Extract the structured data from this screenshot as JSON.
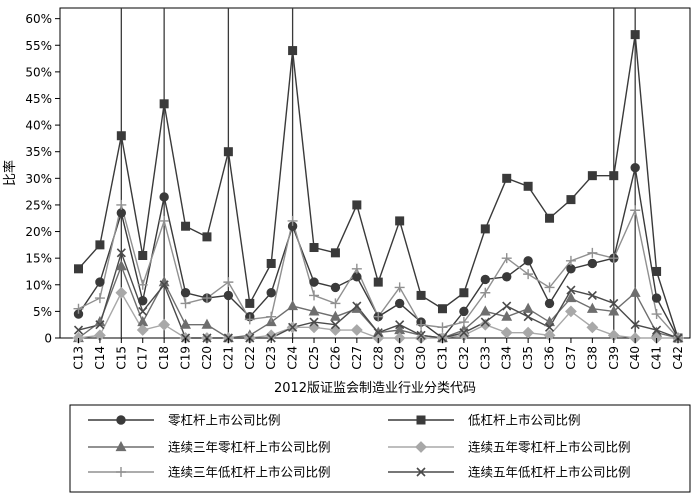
{
  "chart_data": {
    "type": "line",
    "xlabel": "2012版证监会制造业行业分类代码",
    "ylabel": "比率",
    "ylim": [
      0,
      62
    ],
    "yticks": [
      0,
      5,
      10,
      15,
      20,
      25,
      30,
      35,
      40,
      45,
      50,
      55,
      60
    ],
    "ytick_labels": [
      "0",
      "5%",
      "10%",
      "15%",
      "20%",
      "25%",
      "30%",
      "35%",
      "40%",
      "45%",
      "50%",
      "55%",
      "60%"
    ],
    "categories": [
      "C13",
      "C14",
      "C15",
      "C17",
      "C18",
      "C19",
      "C20",
      "C21",
      "C22",
      "C23",
      "C24",
      "C25",
      "C26",
      "C27",
      "C28",
      "C29",
      "C30",
      "C31",
      "C32",
      "C33",
      "C34",
      "C35",
      "C36",
      "C37",
      "C38",
      "C39",
      "C40",
      "C41",
      "C42"
    ],
    "vertical_reference_categories": [
      "C15",
      "C18",
      "C21",
      "C24",
      "C39",
      "C40"
    ],
    "legend_position": "bottom",
    "series": [
      {
        "name": "零杠杆上市公司比例",
        "marker": "circle",
        "color": "#3a3a3a",
        "values": [
          4.5,
          10.5,
          23.5,
          7,
          26.5,
          8.5,
          7.5,
          8,
          4,
          8.5,
          21,
          10.5,
          9.5,
          11.5,
          4,
          6.5,
          3,
          0,
          5,
          11,
          11.5,
          14.5,
          6.5,
          13,
          14,
          15,
          32,
          7.5,
          0
        ]
      },
      {
        "name": "低杠杆上市公司比例",
        "marker": "square",
        "color": "#3a3a3a",
        "values": [
          13,
          17.5,
          38,
          15.5,
          44,
          21,
          19,
          35,
          6.5,
          14,
          54,
          17,
          16,
          25,
          10.5,
          22,
          8,
          5.5,
          8.5,
          20.5,
          30,
          28.5,
          22.5,
          26,
          30.5,
          30.5,
          57,
          12.5,
          0
        ]
      },
      {
        "name": "连续三年零杠杆上市公司比例",
        "marker": "triangle",
        "color": "#6e6e6e",
        "values": [
          0,
          3,
          13.5,
          3,
          10.5,
          2.5,
          2.5,
          0,
          0.5,
          3,
          6,
          5,
          4,
          5.5,
          1,
          1.5,
          0.5,
          0,
          1.5,
          5,
          4,
          5.5,
          3,
          7.5,
          5.5,
          5,
          8.5,
          1,
          0
        ]
      },
      {
        "name": "连续五年零杠杆上市公司比例",
        "marker": "diamond",
        "color": "#a8a8a8",
        "values": [
          0,
          0.5,
          8.5,
          1.5,
          2.5,
          0,
          0,
          0,
          0,
          0.5,
          2,
          2,
          1.5,
          1.5,
          0,
          0,
          0,
          0,
          0.5,
          2.5,
          1,
          1,
          0.5,
          5,
          2,
          0.5,
          0,
          0,
          0
        ]
      },
      {
        "name": "连续三年低杠杆上市公司比例",
        "marker": "plus",
        "color": "#909090",
        "values": [
          5.5,
          7.5,
          25,
          10,
          22,
          6.5,
          7.5,
          10.5,
          3.5,
          4,
          22,
          8,
          6.5,
          13,
          4,
          9.5,
          2.5,
          2,
          3,
          8.5,
          15,
          12,
          9.5,
          14.5,
          16,
          15,
          24,
          4.5,
          0
        ]
      },
      {
        "name": "连续五年低杠杆上市公司比例",
        "marker": "cross",
        "color": "#4a4a4a",
        "values": [
          1.5,
          2.5,
          16,
          5,
          10,
          0,
          0,
          0,
          0,
          0,
          2,
          3,
          2.5,
          6,
          1,
          2.5,
          0.5,
          0,
          1,
          3,
          6,
          4,
          2,
          9,
          8,
          6.5,
          2.5,
          1.5,
          0
        ]
      }
    ]
  }
}
